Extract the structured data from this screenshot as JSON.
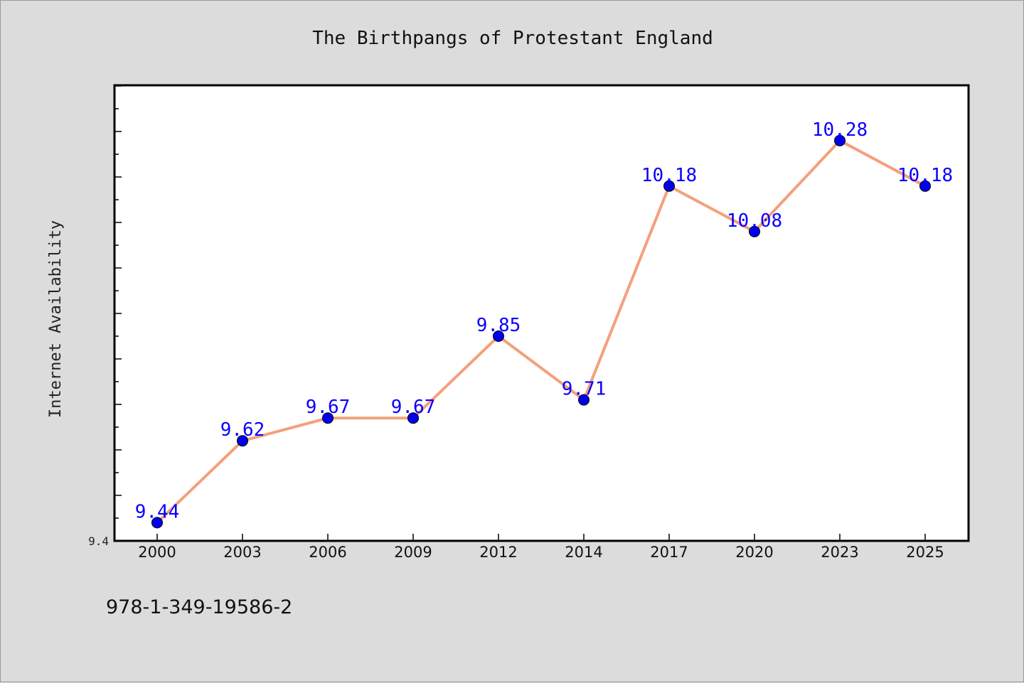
{
  "chart_data": {
    "type": "line",
    "title": "The Birthpangs of Protestant England",
    "xlabel": "",
    "ylabel": "Internet Availability",
    "categories": [
      "2000",
      "2003",
      "2006",
      "2009",
      "2012",
      "2014",
      "2017",
      "2020",
      "2023",
      "2025"
    ],
    "series": [
      {
        "values": [
          9.44,
          9.62,
          9.67,
          9.67,
          9.85,
          9.71,
          10.18,
          10.08,
          10.28,
          10.18
        ],
        "data_labels": [
          "9.44",
          "9.62",
          "9.67",
          "9.67",
          "9.85",
          "9.71",
          "10.18",
          "10.08",
          "10.28",
          "10.18"
        ],
        "line_color": "#f4a07c",
        "marker_color": "#0000ee"
      }
    ],
    "ylim": [
      9.4,
      10.4
    ],
    "ytick_labels": [
      "9.4"
    ],
    "grid": false,
    "legend": "none"
  },
  "footer": {
    "isbn": "978-1-349-19586-2"
  },
  "colors": {
    "background": "#dcdcdc",
    "plot_area": "#ffffff",
    "data_label": "#0a00ff"
  }
}
